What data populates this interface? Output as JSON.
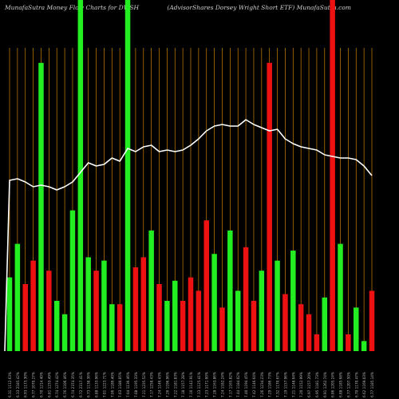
{
  "header": {
    "left_title": "MunafaSutra  Money Flow  Charts for DWSH",
    "right_title": "(AdvisorShares Dorsey Wright Short ETF) MunafaSutra.com"
  },
  "chart_data": {
    "type": "bar",
    "title": "MunafaSutra  Money Flow  Charts for DWSH",
    "subtitle": "(AdvisorShares Dorsey Wright Short ETF) MunafaSutra.com",
    "colors": {
      "up": "#22ee22",
      "down": "#ee1111",
      "line": "#ffffff",
      "grid": "#cc8400",
      "background": "#000000"
    },
    "categories": [
      "6.31 1112.63%",
      "6.33 2185.42%",
      "6.93 1173.30%",
      "6.77 1070.27%",
      "6.70 1214.40%",
      "6.81 1233.49%",
      "6.74 1274.42%",
      "6.76 1106.46%",
      "6.74 2374.35%",
      "6.72 2317.41%",
      "6.73 1138.36%",
      "6.88 1133.96%",
      "7.01 1223.71%",
      "7.06 1189.40%",
      "7.03 1180.05%",
      "7.04 1136.46%",
      "7.08 1195.33%",
      "7.21 1235.52%",
      "7.17 1258.43%",
      "7.24 1146.43%",
      "7.26 1196.96%",
      "7.22 1181.83%",
      "7.18 1157.28%",
      "7.16 1142.91%",
      "7.13 1125.41%",
      "7.23 1171.60%",
      "7.28 1163.86%",
      "7.24 1182.24%",
      "7.17 1165.82%",
      "7.44 1184.02%",
      "7.40 1194.45%",
      "7.42 1146.64%",
      "7.26 1234.23%",
      "7.29 1186.73%",
      "7.32 1170.67%",
      "7.19 1157.96%",
      "7.21 1148.64%",
      "7.20 1152.99%",
      "6.97 1157.20%",
      "6.95 1181.73%",
      "6.91 1262.74%",
      "6.86 1205.24%",
      "6.88 1185.68%",
      "6.77 1207.50%",
      "6.70 1170.47%",
      "6.62 1169.03%",
      "6.77 1185.14%"
    ],
    "bar_colors": [
      "up",
      "up",
      "down",
      "down",
      "up",
      "down",
      "up",
      "up",
      "up",
      "up",
      "up",
      "down",
      "up",
      "up",
      "down",
      "up",
      "down",
      "down",
      "up",
      "down",
      "up",
      "up",
      "down",
      "down",
      "down",
      "down",
      "up",
      "down",
      "up",
      "up",
      "down",
      "down",
      "up",
      "down",
      "up",
      "down",
      "up",
      "down",
      "down",
      "down",
      "up",
      "down",
      "up",
      "down",
      "up",
      "up",
      "down"
    ],
    "values": [
      22,
      32,
      20,
      27,
      86,
      24,
      15,
      11,
      42,
      100,
      28,
      24,
      27,
      14,
      14,
      100,
      25,
      28,
      36,
      20,
      15,
      21,
      15,
      22,
      18,
      39,
      29,
      13,
      36,
      18,
      31,
      15,
      24,
      86,
      27,
      17,
      30,
      14,
      11,
      5,
      16,
      100,
      32,
      5,
      13,
      3,
      18
    ],
    "highlight_bars": [
      9,
      15,
      41
    ],
    "line_values": [
      68.5,
      69,
      68,
      66.5,
      67,
      66.5,
      65.5,
      66.5,
      68,
      71,
      74,
      73,
      73.5,
      75.5,
      74.5,
      78.5,
      77.5,
      79,
      79.5,
      77.5,
      78,
      77.5,
      78,
      79.5,
      81.5,
      84,
      85.5,
      86,
      85.5,
      85.5,
      87.5,
      86,
      85,
      84,
      84.5,
      81.5,
      80,
      79,
      78.5,
      78,
      76.5,
      76,
      75.5,
      75.5,
      75,
      73,
      70
    ]
  }
}
